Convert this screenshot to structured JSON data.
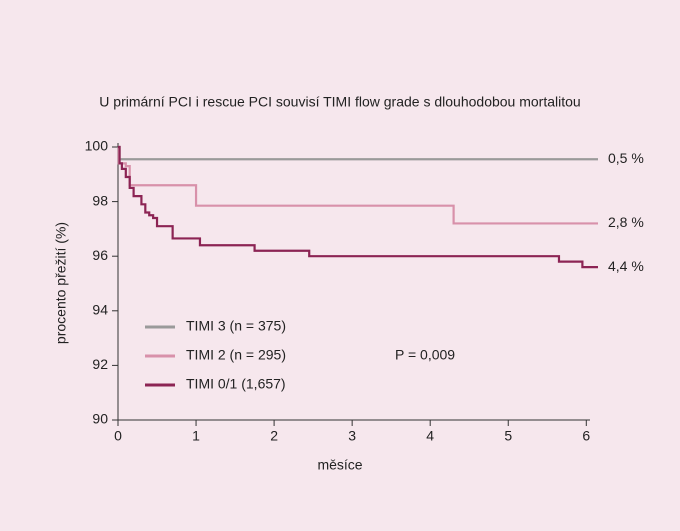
{
  "chart_data": {
    "type": "step",
    "title": "U primární PCI i rescue PCI souvisí TIMI flow grade s dlouhodobou mortalitou",
    "xlabel": "měsíce",
    "ylabel": "procento přežití (%)",
    "xlim": [
      0,
      6.15
    ],
    "ylim": [
      90,
      100
    ],
    "xticks": [
      0,
      1,
      2,
      3,
      4,
      5,
      6
    ],
    "yticks": [
      90,
      92,
      94,
      96,
      98,
      100
    ],
    "annotation": "P = 0,009",
    "series": [
      {
        "name": "TIMI 3 (n = 375)",
        "color": "#9a9a9a",
        "end_label": "0,5 %",
        "x": [
          0,
          0.02,
          6.15
        ],
        "values": [
          100,
          99.55,
          99.55
        ]
      },
      {
        "name": "TIMI 2 (n = 295)",
        "color": "#d891aa",
        "end_label": "2,8 %",
        "x": [
          0,
          0.01,
          0.1,
          0.15,
          1.0,
          4.3,
          6.15
        ],
        "values": [
          100,
          99.4,
          99.3,
          98.6,
          97.85,
          97.2,
          97.2
        ]
      },
      {
        "name": "TIMI 0/1 (1,657)",
        "color": "#8c2454",
        "end_label": "4,4 %",
        "x": [
          0,
          0.02,
          0.05,
          0.1,
          0.15,
          0.2,
          0.3,
          0.35,
          0.4,
          0.45,
          0.5,
          0.7,
          1.05,
          1.75,
          2.45,
          5.65,
          5.95,
          6.15
        ],
        "values": [
          100,
          99.4,
          99.2,
          98.9,
          98.5,
          98.2,
          97.9,
          97.6,
          97.5,
          97.4,
          97.1,
          96.65,
          96.4,
          96.2,
          96.0,
          95.8,
          95.6,
          95.6
        ]
      }
    ]
  }
}
